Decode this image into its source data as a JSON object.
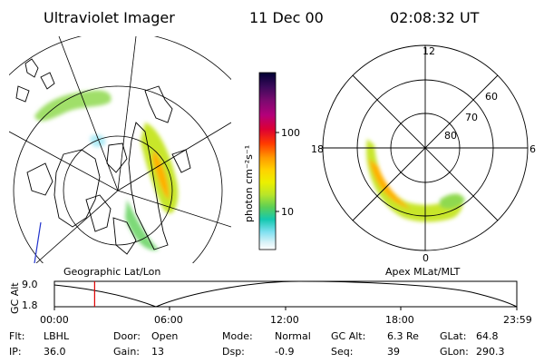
{
  "header": {
    "title": "Ultraviolet Imager",
    "date": "11 Dec 00",
    "time": "02:08:32 UT"
  },
  "geo_panel": {
    "label": "Geographic Lat/Lon"
  },
  "apex_panel": {
    "label": "Apex MLat/MLT",
    "mlt_labels": {
      "top": "12",
      "left": "18",
      "right": "6",
      "bottom": "0"
    },
    "lat_labels": [
      "60",
      "70",
      "80"
    ]
  },
  "colorbar": {
    "unit_label": "photon cm⁻²s⁻¹",
    "ticks": [
      "100",
      "10"
    ],
    "colors": [
      "#000033",
      "#3b0a5a",
      "#7d0a70",
      "#b4007a",
      "#dd0033",
      "#ff3a00",
      "#ff9a00",
      "#ffd200",
      "#ecf000",
      "#b8e52a",
      "#5ccf55",
      "#14c8b0",
      "#7fe0f0",
      "#d9f2f8",
      "#ffffff"
    ]
  },
  "altitude_plot": {
    "ylabel": "GC Alt",
    "ymax": "9.0",
    "ymin": "1.8",
    "xticks": [
      "00:00",
      "06:00",
      "12:00",
      "18:00",
      "23:59"
    ],
    "current_time_fraction": 0.087
  },
  "info_rows": [
    [
      {
        "key": "Flt:",
        "val": "LBHL"
      },
      {
        "key": "Door:",
        "val": "Open"
      },
      {
        "key": "Mode:",
        "val": "Normal"
      },
      {
        "key": "GC Alt:",
        "val": "6.3 Re"
      },
      {
        "key": "GLat:",
        "val": "64.8"
      }
    ],
    [
      {
        "key": "IP:",
        "val": "36.0"
      },
      {
        "key": "Gain:",
        "val": "13"
      },
      {
        "key": "Dsp:",
        "val": "-0.9"
      },
      {
        "key": "Seq:",
        "val": "39"
      },
      {
        "key": "GLon:",
        "val": "290.3"
      }
    ]
  ]
}
